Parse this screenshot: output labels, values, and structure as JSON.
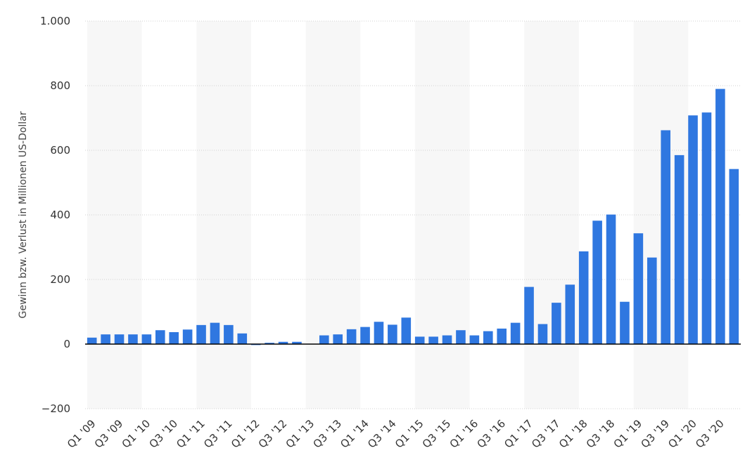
{
  "chart_data": {
    "type": "bar",
    "ylabel": "Gewinn bzw. Verlust in Millionen US-Dollar",
    "xlabel": "",
    "ylim": [
      -200,
      1000
    ],
    "yticks": [
      -200,
      0,
      200,
      400,
      600,
      800,
      1000
    ],
    "ytick_labels": [
      "-200",
      "0",
      "200",
      "400",
      "600",
      "800",
      "1.000"
    ],
    "bar_color": "#2f77e0",
    "band_color": "#f7f7f7",
    "grid": true,
    "categories": [
      "Q1 '09",
      "Q2 '09",
      "Q3 '09",
      "Q4 '09",
      "Q1 '10",
      "Q2 '10",
      "Q3 '10",
      "Q4 '10",
      "Q1 '11",
      "Q2 '11",
      "Q3 '11",
      "Q4 '11",
      "Q1 '12",
      "Q2 '12",
      "Q3 '12",
      "Q4 '12",
      "Q1 '13",
      "Q2 '13",
      "Q3 '13",
      "Q4 '13",
      "Q1 '14",
      "Q2 '14",
      "Q3 '14",
      "Q4 '14",
      "Q1 '15",
      "Q2 '15",
      "Q3 '15",
      "Q4 '15",
      "Q1 '16",
      "Q2 '16",
      "Q3 '16",
      "Q4 '16",
      "Q1 '17",
      "Q2 '17",
      "Q3 '17",
      "Q4 '17",
      "Q1 '18",
      "Q2 '18",
      "Q3 '18",
      "Q4 '18",
      "Q1 '19",
      "Q2 '19",
      "Q3 '19",
      "Q4 '19",
      "Q1 '20",
      "Q2 '20",
      "Q3 '20",
      "Q4 '20"
    ],
    "x_tick_labels": [
      "Q1 '09",
      "Q3 '09",
      "Q1 '10",
      "Q3 '10",
      "Q1 '11",
      "Q3 '11",
      "Q1 '12",
      "Q3 '12",
      "Q1 '13",
      "Q3 '13",
      "Q1 '14",
      "Q3 '14",
      "Q1 '15",
      "Q3 '15",
      "Q1 '16",
      "Q3 '16",
      "Q1 '17",
      "Q3 '17",
      "Q1 '18",
      "Q3 '18",
      "Q1 '19",
      "Q3 '19",
      "Q1 '20",
      "Q3 '20"
    ],
    "values": [
      20,
      30,
      30,
      30,
      30,
      43,
      37,
      45,
      59,
      66,
      59,
      33,
      -3,
      4,
      7,
      7,
      1,
      27,
      30,
      46,
      53,
      69,
      60,
      82,
      23,
      23,
      27,
      43,
      27,
      40,
      48,
      66,
      177,
      62,
      128,
      184,
      287,
      382,
      401,
      131,
      343,
      268,
      662,
      585,
      708,
      717,
      790,
      542
    ]
  }
}
